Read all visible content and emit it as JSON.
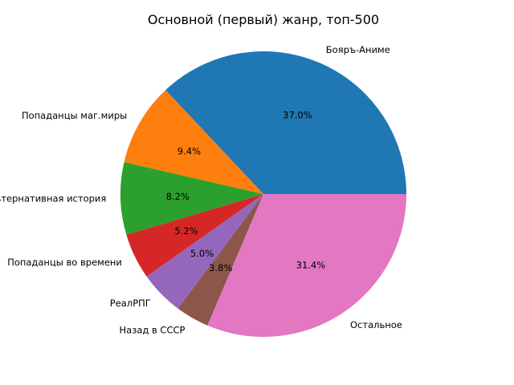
{
  "chart_data": {
    "type": "pie",
    "title": "Основной (первый) жанр, топ-500",
    "start_angle_deg": 0,
    "direction": "counterclockwise",
    "slices": [
      {
        "label": "Бояръ-Аниме",
        "value": 37.0,
        "pct_text": "37.0%",
        "color": "#1f77b4"
      },
      {
        "label": "Попаданцы маг.миры",
        "value": 9.4,
        "pct_text": "9.4%",
        "color": "#ff7f0e"
      },
      {
        "label": "Альтернативная история",
        "value": 8.2,
        "pct_text": "8.2%",
        "color": "#2ca02c"
      },
      {
        "label": "Попаданцы во времени",
        "value": 5.2,
        "pct_text": "5.2%",
        "color": "#d62728"
      },
      {
        "label": "РеалРПГ",
        "value": 5.0,
        "pct_text": "5.0%",
        "color": "#9467bd"
      },
      {
        "label": "Назад в СССР",
        "value": 3.8,
        "pct_text": "3.8%",
        "color": "#8c564b"
      },
      {
        "label": "Остальное",
        "value": 31.4,
        "pct_text": "31.4%",
        "color": "#e377c2"
      }
    ]
  }
}
